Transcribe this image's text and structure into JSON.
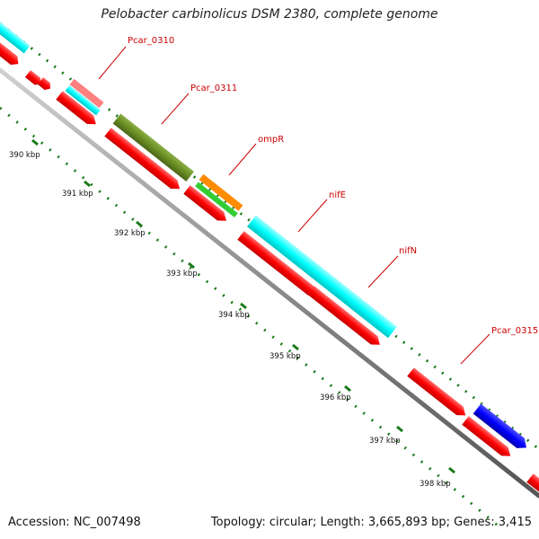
{
  "title": "Pelobacter carbinolicus DSM 2380, complete genome",
  "footer": {
    "accession": "Accession: NC_007498",
    "summary": "Topology: circular; Length: 3,665,893 bp; Genes: 3,415"
  },
  "gene_labels": [
    "Pcar_0310",
    "Pcar_0311",
    "ompR",
    "nifE",
    "nifN",
    "Pcar_0315"
  ],
  "ticks": [
    "390 kbp",
    "391 kbp",
    "392 kbp",
    "393 kbp",
    "394 kbp",
    "395 kbp",
    "396 kbp",
    "397 kbp",
    "398 kbp"
  ],
  "colors": {
    "backbone": "#8c8c8c",
    "cds": "#ff0000",
    "tick_marks": "#1a7a1a",
    "label": "#cc0000",
    "feature_cyan": "#00ffff",
    "feature_pink": "#ff8080",
    "feature_blue": "#0000ff",
    "feature_olive": "#6b8e23",
    "feature_orange": "#ff8c00",
    "feature_green": "#32cd32"
  }
}
